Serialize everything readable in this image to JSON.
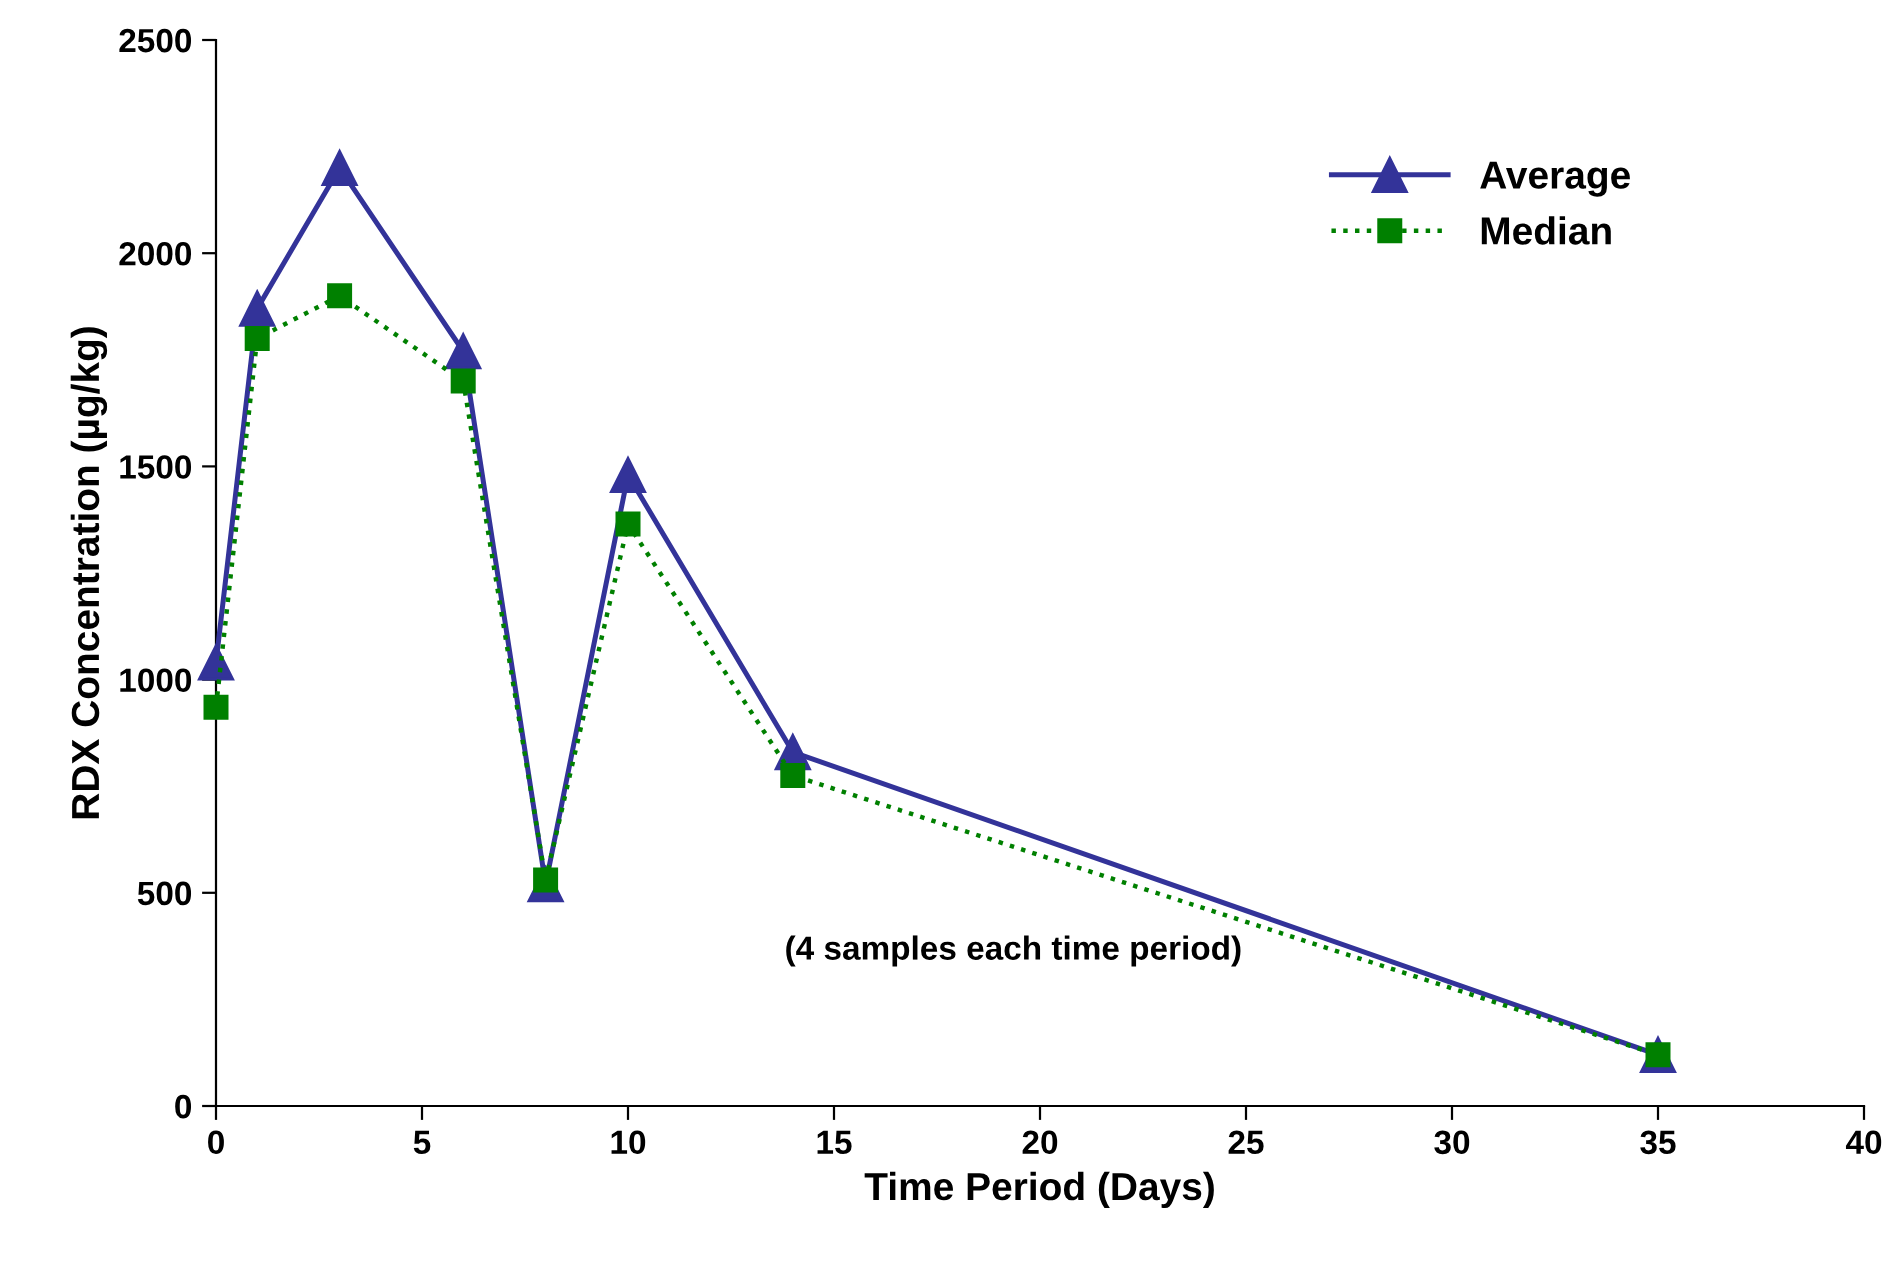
{
  "chart_data": {
    "type": "line",
    "xlabel": "Time Period (Days)",
    "ylabel": "RDX Concentration (µg/kg)",
    "x": [
      0,
      1,
      3,
      6,
      8,
      10,
      14,
      35
    ],
    "series": [
      {
        "name": "Average",
        "color": "#333399",
        "marker": "triangle",
        "line_style": "solid",
        "values": [
          1040,
          1870,
          2200,
          1770,
          520,
          1480,
          830,
          120
        ]
      },
      {
        "name": "Median",
        "color": "#008000",
        "marker": "square",
        "line_style": "dotted",
        "values": [
          935,
          1800,
          1900,
          1700,
          530,
          1365,
          775,
          120
        ]
      }
    ],
    "xlim": [
      0,
      40
    ],
    "xticks": [
      0,
      5,
      10,
      15,
      20,
      25,
      30,
      35,
      40
    ],
    "ylim": [
      0,
      2500
    ],
    "yticks": [
      0,
      500,
      1000,
      1500,
      2000,
      2500
    ],
    "grid": false,
    "legend": "top right",
    "annotations": [
      "(4 samples each time period)"
    ]
  }
}
